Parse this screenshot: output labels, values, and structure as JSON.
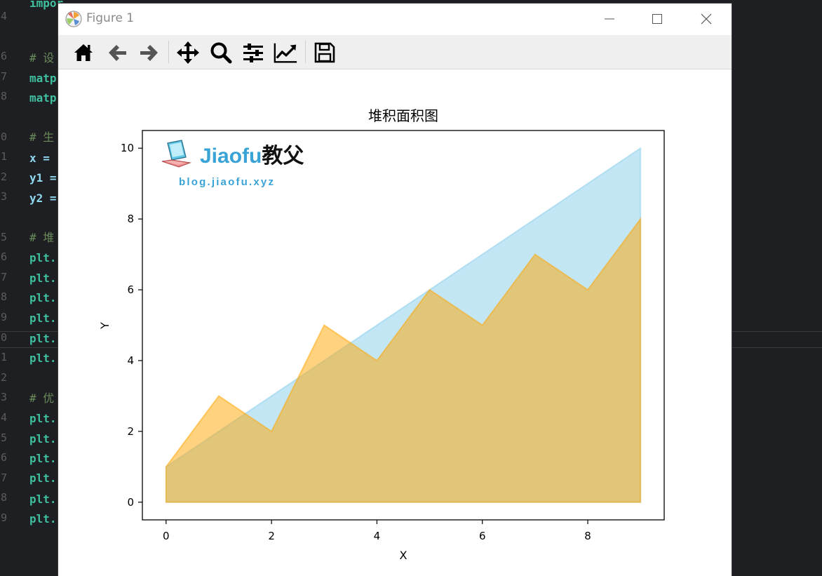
{
  "editor": {
    "line_numbers": [
      "4",
      "",
      "6",
      "7",
      "8",
      "",
      "0",
      "1",
      "2",
      "3",
      "",
      "5",
      "6",
      "7",
      "8",
      "9",
      "0",
      "1",
      "2",
      "3",
      "4",
      "5",
      "6",
      "7",
      "8",
      "9"
    ],
    "lines": [
      {
        "text": "impor",
        "kind": "code"
      },
      {
        "text": "# 设",
        "kind": "comment"
      },
      {
        "text": "matp",
        "kind": "code"
      },
      {
        "text": "matp",
        "kind": "code"
      },
      {
        "text": "# 生",
        "kind": "comment"
      },
      {
        "text": "x =",
        "kind": "var"
      },
      {
        "text": "y1 =",
        "kind": "var"
      },
      {
        "text": "y2 =",
        "kind": "var"
      },
      {
        "text": "# 堆",
        "kind": "comment"
      },
      {
        "text": "plt.",
        "kind": "code"
      },
      {
        "text": "plt.",
        "kind": "code"
      },
      {
        "text": "plt.",
        "kind": "code"
      },
      {
        "text": "plt.",
        "kind": "code"
      },
      {
        "text": "plt.",
        "kind": "code"
      },
      {
        "text": "plt.",
        "kind": "code"
      },
      {
        "text": "# 优",
        "kind": "comment"
      },
      {
        "text": "plt.",
        "kind": "code"
      },
      {
        "text": "plt.",
        "kind": "code"
      },
      {
        "text": "plt.",
        "kind": "code"
      },
      {
        "text": "plt.",
        "kind": "code"
      },
      {
        "text": "plt.",
        "kind": "code"
      },
      {
        "text": "plt.",
        "kind": "code"
      }
    ]
  },
  "window": {
    "title": "Figure 1",
    "icon": "matplotlib-icon",
    "controls": [
      "minimize-icon",
      "maximize-icon",
      "close-icon"
    ]
  },
  "toolbar": {
    "buttons": [
      {
        "name": "home",
        "icon": "home-icon"
      },
      {
        "name": "back",
        "icon": "arrow-left-icon"
      },
      {
        "name": "forward",
        "icon": "arrow-right-icon"
      },
      {
        "name": "pan",
        "icon": "move-icon"
      },
      {
        "name": "zoom",
        "icon": "magnifier-icon"
      },
      {
        "name": "subplots",
        "icon": "sliders-icon"
      },
      {
        "name": "edit-axis",
        "icon": "line-chart-icon"
      },
      {
        "name": "save",
        "icon": "floppy-disk-icon"
      }
    ]
  },
  "watermark": {
    "brand_latin": "Jiaofu",
    "brand_cn": "教父",
    "url": "blog.jiaofu.xyz",
    "colors": {
      "latin": "#3aa3d6",
      "cn": "#111111",
      "url": "#3aa3d6"
    }
  },
  "chart_data": {
    "type": "area",
    "title": "堆积面积图",
    "xlabel": "X",
    "ylabel": "Y",
    "x": [
      0,
      1,
      2,
      3,
      4,
      5,
      6,
      7,
      8,
      9
    ],
    "xlim": [
      -0.45,
      9.45
    ],
    "ylim": [
      -0.5,
      10.5
    ],
    "xticks": [
      "0",
      "2",
      "4",
      "6",
      "8"
    ],
    "yticks": [
      "0",
      "2",
      "4",
      "6",
      "8",
      "10"
    ],
    "series": [
      {
        "values": [
          1,
          2,
          3,
          4,
          5,
          6,
          7,
          8,
          9,
          10
        ],
        "color": "#87ceeb",
        "alpha": 0.5
      },
      {
        "values": [
          1,
          3,
          2,
          5,
          4,
          6,
          5,
          7,
          6,
          8
        ],
        "color": "#ffa500",
        "alpha": 0.5
      }
    ],
    "grid": false,
    "legend": false
  }
}
